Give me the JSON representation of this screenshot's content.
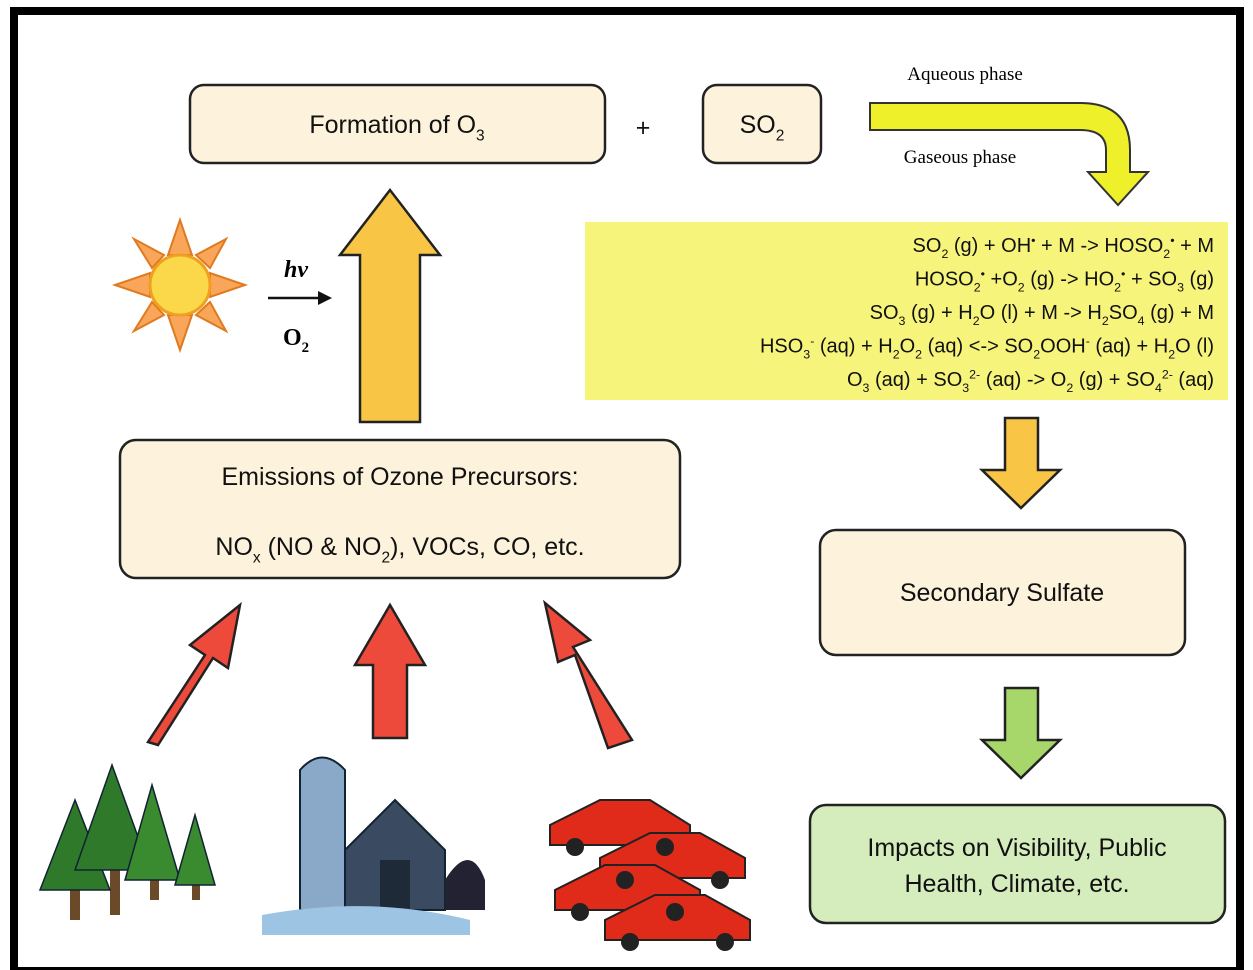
{
  "nodes": [
    {
      "label": [
        "Formation of O",
        {
          "sub": "3"
        }
      ]
    },
    {
      "label": [
        "SO",
        {
          "sub": "2"
        }
      ]
    },
    {
      "title": "Emissions of Ozone Precursors:",
      "label": [
        "NO",
        {
          "sub": "x"
        },
        " (NO & NO",
        {
          "sub": "2"
        },
        "), VOCs, CO, etc."
      ]
    },
    {
      "label": [
        "Secondary Sulfate"
      ]
    },
    {
      "lines": [
        "Impacts on Visibility, Public",
        "Health, Climate, etc."
      ]
    }
  ],
  "plus": "+",
  "phases": {
    "aqueous": "Aqueous phase",
    "gaseous": "Gaseous phase"
  },
  "sunlight": {
    "hv": "hv",
    "oxygen": [
      "O",
      {
        "sub": "2"
      }
    ]
  },
  "reactions": [
    [
      "SO",
      {
        "sub": "2"
      },
      " (g) + OH",
      {
        "sup": "•"
      },
      " + M -> HOSO",
      {
        "sub": "2"
      },
      {
        "sup": "•"
      },
      " + M"
    ],
    [
      "HOSO",
      {
        "sub": "2"
      },
      {
        "sup": "•"
      },
      " +O",
      {
        "sub": "2"
      },
      " (g) -> HO",
      {
        "sub": "2"
      },
      {
        "sup": "•"
      },
      " + SO",
      {
        "sub": "3"
      },
      " (g)"
    ],
    [
      "SO",
      {
        "sub": "3"
      },
      " (g) + H",
      {
        "sub": "2"
      },
      "O (l) + M -> H",
      {
        "sub": "2"
      },
      "SO",
      {
        "sub": "4"
      },
      " (g) + M"
    ],
    [
      "HSO",
      {
        "sub": "3"
      },
      {
        "sup": "-"
      },
      " (aq) + H",
      {
        "sub": "2"
      },
      "O",
      {
        "sub": "2"
      },
      " (aq) <-> SO",
      {
        "sub": "2"
      },
      "OOH",
      {
        "sup": "-"
      },
      " (aq) + H",
      {
        "sub": "2"
      },
      "O (l)"
    ],
    [
      "O",
      {
        "sub": "3"
      },
      " (aq) + SO",
      {
        "sub": "3"
      },
      {
        "sup": "2-"
      },
      " (aq) -> O",
      {
        "sub": "2"
      },
      " (g) + SO",
      {
        "sub": "4"
      },
      {
        "sup": "2-"
      },
      " (aq)"
    ]
  ]
}
